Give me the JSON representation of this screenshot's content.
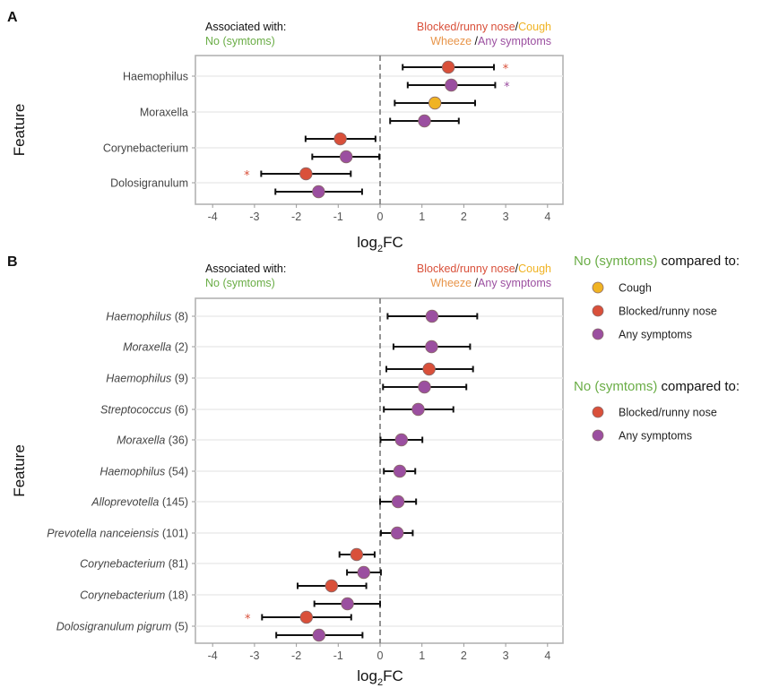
{
  "colors": {
    "blocked_runny_nose": "#d9503a",
    "cough": "#f0b323",
    "wheeze": "#e8954a",
    "any_symptoms": "#9b4fa0",
    "no_symptoms": "#6aad46",
    "black": "#111111",
    "sig_star_red": "#d9503a",
    "sig_star_purple": "#9b4fa0"
  },
  "chart_data": [
    {
      "panel": "A",
      "type": "scatter",
      "subtype": "forest-plot",
      "xlabel": "log2FC",
      "ylabel": "Feature",
      "xlim": [
        -4.4,
        4.4
      ],
      "xticks": [
        -4,
        -3,
        -2,
        -1,
        0,
        1,
        2,
        3,
        4
      ],
      "reference_line": 0,
      "header_left": {
        "line1": "Associated with:",
        "line2": "No (symtoms)"
      },
      "header_right": {
        "line1": [
          {
            "text": "Blocked/runny  nose",
            "color_key": "blocked_runny_nose"
          },
          {
            "text": "/",
            "color_key": "black"
          },
          {
            "text": "Cough",
            "color_key": "cough"
          }
        ],
        "line2": [
          {
            "text": "Wheeze",
            "color_key": "wheeze"
          },
          {
            "text": " /",
            "color_key": "black"
          },
          {
            "text": "Any symptoms",
            "color_key": "any_symptoms"
          }
        ]
      },
      "categories": [
        "Haemophilus",
        "Moraxella",
        "Corynebacterium",
        "Dolosigranulum"
      ],
      "italic_labels": false,
      "points": [
        {
          "feature": "Haemophilus",
          "offset": -0.5,
          "group": "Blocked/runny nose",
          "color_key": "blocked_runny_nose",
          "estimate": 1.63,
          "lower": 0.54,
          "upper": 2.72,
          "significant": true
        },
        {
          "feature": "Haemophilus",
          "offset": 0.5,
          "group": "Any symptoms",
          "color_key": "any_symptoms",
          "estimate": 1.7,
          "lower": 0.66,
          "upper": 2.75,
          "significant": true
        },
        {
          "feature": "Moraxella",
          "offset": -0.5,
          "group": "Cough",
          "color_key": "cough",
          "estimate": 1.31,
          "lower": 0.35,
          "upper": 2.27,
          "significant": false
        },
        {
          "feature": "Moraxella",
          "offset": 0.5,
          "group": "Any symptoms",
          "color_key": "any_symptoms",
          "estimate": 1.06,
          "lower": 0.24,
          "upper": 1.88,
          "significant": false
        },
        {
          "feature": "Corynebacterium",
          "offset": -0.5,
          "group": "Blocked/runny nose",
          "color_key": "blocked_runny_nose",
          "estimate": -0.95,
          "lower": -1.78,
          "upper": -0.11,
          "significant": false
        },
        {
          "feature": "Corynebacterium",
          "offset": 0.5,
          "group": "Any symptoms",
          "color_key": "any_symptoms",
          "estimate": -0.81,
          "lower": -1.62,
          "upper": -0.02,
          "significant": false
        },
        {
          "feature": "Dolosigranulum",
          "offset": -0.5,
          "group": "Blocked/runny nose",
          "color_key": "blocked_runny_nose",
          "estimate": -1.77,
          "lower": -2.84,
          "upper": -0.7,
          "significant": true,
          "star_side": "left"
        },
        {
          "feature": "Dolosigranulum",
          "offset": 0.5,
          "group": "Any symptoms",
          "color_key": "any_symptoms",
          "estimate": -1.47,
          "lower": -2.5,
          "upper": -0.43,
          "significant": false
        }
      ]
    },
    {
      "panel": "B",
      "type": "scatter",
      "subtype": "forest-plot",
      "xlabel": "log2FC",
      "ylabel": "Feature",
      "xlim": [
        -4.4,
        4.4
      ],
      "xticks": [
        -4,
        -3,
        -2,
        -1,
        0,
        1,
        2,
        3,
        4
      ],
      "reference_line": 0,
      "header_left": {
        "line1": "Associated with:",
        "line2": "No (symtoms)"
      },
      "header_right": {
        "line1": [
          {
            "text": "Blocked/runny  nose",
            "color_key": "blocked_runny_nose"
          },
          {
            "text": "/",
            "color_key": "black"
          },
          {
            "text": "Cough",
            "color_key": "cough"
          }
        ],
        "line2": [
          {
            "text": "Wheeze",
            "color_key": "wheeze"
          },
          {
            "text": " /",
            "color_key": "black"
          },
          {
            "text": "Any symptoms",
            "color_key": "any_symptoms"
          }
        ]
      },
      "categories": [
        {
          "name": "Haemophilus",
          "count": "(8)"
        },
        {
          "name": "Moraxella",
          "count": "(2)"
        },
        {
          "name": "Haemophilus",
          "count": "(9)"
        },
        {
          "name": "Streptococcus",
          "count": "(6)"
        },
        {
          "name": "Moraxella",
          "count": "(36)"
        },
        {
          "name": "Haemophilus",
          "count": "(54)"
        },
        {
          "name": "Alloprevotella",
          "count": "(145)"
        },
        {
          "name": "Prevotella nanceiensis",
          "count": "(101)"
        },
        {
          "name": "Corynebacterium",
          "count": "(81)"
        },
        {
          "name": "Corynebacterium",
          "count": "(18)"
        },
        {
          "name": "Dolosigranulum pigrum",
          "count": "(5)"
        }
      ],
      "italic_labels": true,
      "points": [
        {
          "row": 0,
          "offset": 0,
          "group": "Any symptoms",
          "color_key": "any_symptoms",
          "estimate": 1.24,
          "lower": 0.18,
          "upper": 2.32,
          "significant": false
        },
        {
          "row": 1,
          "offset": 0,
          "group": "Any symptoms",
          "color_key": "any_symptoms",
          "estimate": 1.23,
          "lower": 0.32,
          "upper": 2.15,
          "significant": false
        },
        {
          "row": 2,
          "offset": -0.5,
          "group": "Blocked/runny nose",
          "color_key": "blocked_runny_nose",
          "estimate": 1.17,
          "lower": 0.15,
          "upper": 2.22,
          "significant": false
        },
        {
          "row": 2,
          "offset": 0.5,
          "group": "Any symptoms",
          "color_key": "any_symptoms",
          "estimate": 1.06,
          "lower": 0.07,
          "upper": 2.06,
          "significant": false
        },
        {
          "row": 3,
          "offset": 0,
          "group": "Any symptoms",
          "color_key": "any_symptoms",
          "estimate": 0.91,
          "lower": 0.09,
          "upper": 1.75,
          "significant": false
        },
        {
          "row": 4,
          "offset": 0,
          "group": "Any symptoms",
          "color_key": "any_symptoms",
          "estimate": 0.51,
          "lower": 0.01,
          "upper": 1.01,
          "significant": false
        },
        {
          "row": 5,
          "offset": 0,
          "group": "Any symptoms",
          "color_key": "any_symptoms",
          "estimate": 0.47,
          "lower": 0.09,
          "upper": 0.84,
          "significant": false
        },
        {
          "row": 6,
          "offset": 0,
          "group": "Any symptoms",
          "color_key": "any_symptoms",
          "estimate": 0.43,
          "lower": 0.0,
          "upper": 0.86,
          "significant": false
        },
        {
          "row": 7,
          "offset": 0,
          "group": "Any symptoms",
          "color_key": "any_symptoms",
          "estimate": 0.41,
          "lower": 0.02,
          "upper": 0.78,
          "significant": false
        },
        {
          "row": 8,
          "offset": -0.5,
          "group": "Blocked/runny nose",
          "color_key": "blocked_runny_nose",
          "estimate": -0.56,
          "lower": -0.97,
          "upper": -0.13,
          "significant": false
        },
        {
          "row": 8,
          "offset": 0.5,
          "group": "Any symptoms",
          "color_key": "any_symptoms",
          "estimate": -0.39,
          "lower": -0.79,
          "upper": 0.02,
          "significant": false
        },
        {
          "row": 9,
          "offset": -0.5,
          "group": "Blocked/runny nose",
          "color_key": "blocked_runny_nose",
          "estimate": -1.16,
          "lower": -1.97,
          "upper": -0.33,
          "significant": false
        },
        {
          "row": 9,
          "offset": 0.5,
          "group": "Any symptoms",
          "color_key": "any_symptoms",
          "estimate": -0.78,
          "lower": -1.57,
          "upper": 0.0,
          "significant": false
        },
        {
          "row": 10,
          "offset": -0.5,
          "group": "Blocked/runny nose",
          "color_key": "blocked_runny_nose",
          "estimate": -1.76,
          "lower": -2.82,
          "upper": -0.69,
          "significant": true,
          "star_side": "left"
        },
        {
          "row": 10,
          "offset": 0.5,
          "group": "Any symptoms",
          "color_key": "any_symptoms",
          "estimate": -1.46,
          "lower": -2.48,
          "upper": -0.42,
          "significant": false
        }
      ]
    }
  ],
  "panel_letters": [
    "A",
    "B"
  ],
  "legends": [
    {
      "title_green": "No (symtoms)",
      "title_rest": " compared to:",
      "items": [
        {
          "label": "Cough",
          "color_key": "cough"
        },
        {
          "label": "Blocked/runny nose",
          "color_key": "blocked_runny_nose"
        },
        {
          "label": "Any symptoms",
          "color_key": "any_symptoms"
        }
      ]
    },
    {
      "title_green": "No (symtoms)",
      "title_rest": " compared to:",
      "items": [
        {
          "label": "Blocked/runny nose",
          "color_key": "blocked_runny_nose"
        },
        {
          "label": "Any symptoms",
          "color_key": "any_symptoms"
        }
      ]
    }
  ],
  "significance_marker": "*"
}
